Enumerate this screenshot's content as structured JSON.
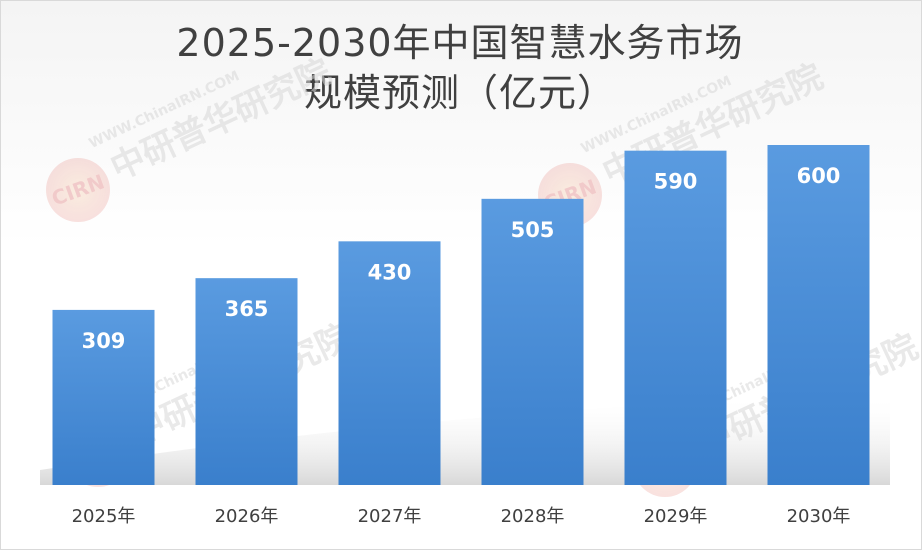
{
  "chart_data": {
    "type": "bar",
    "title_lines": [
      "2025-2030年中国智慧水务市场",
      "规模预测（亿元）"
    ],
    "categories": [
      "2025年",
      "2026年",
      "2027年",
      "2028年",
      "2029年",
      "2030年"
    ],
    "values": [
      309,
      365,
      430,
      505,
      590,
      600
    ],
    "value_labels": [
      "309",
      "365",
      "430",
      "505",
      "590",
      "600"
    ],
    "ylim": [
      0,
      750
    ],
    "grid": false,
    "legend": "none",
    "bar_color": "#4a8fd6"
  },
  "watermark": {
    "logo_text": "CIRN",
    "org_name": "中研普华研究院",
    "site": "WWW.ChinaIRN.COM"
  }
}
